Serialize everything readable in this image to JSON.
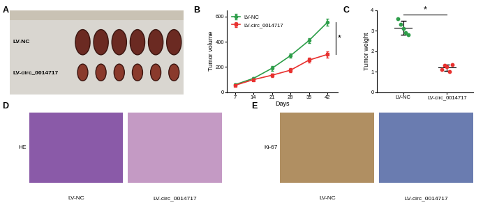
{
  "panel_labels": [
    "A",
    "B",
    "C",
    "D",
    "E"
  ],
  "photo": {
    "row_labels": [
      "LV-NC",
      "LV-circ_0014717"
    ]
  },
  "chart_data": [
    {
      "type": "line",
      "x": [
        7,
        14,
        21,
        28,
        35,
        42
      ],
      "xlim": [
        4,
        46
      ],
      "xticks": [
        7,
        14,
        21,
        28,
        35,
        42
      ],
      "ylim": [
        0,
        650
      ],
      "yticks": [
        0,
        200,
        400,
        600
      ],
      "x_label": "Days",
      "y_label": "Tumor volume",
      "legend": "upper left",
      "annotations": [
        "*"
      ],
      "series": [
        {
          "name": "LV-NC",
          "color": "#2e9e4a",
          "marker": "o",
          "values": [
            60,
            110,
            190,
            290,
            410,
            555
          ],
          "errors": [
            10,
            12,
            20,
            18,
            20,
            25
          ]
        },
        {
          "name": "LV-circ_0014717",
          "color": "#e8312f",
          "marker": "s",
          "values": [
            55,
            100,
            135,
            175,
            255,
            300
          ],
          "errors": [
            8,
            10,
            15,
            15,
            20,
            25
          ]
        }
      ]
    },
    {
      "type": "scatter",
      "categories": [
        "LV-NC",
        "LV-circ_0014717"
      ],
      "values": [
        [
          3.6,
          3.3,
          3.1,
          2.9,
          2.8
        ],
        [
          1.1,
          1.3,
          1.25,
          1.0,
          1.35
        ]
      ],
      "means": [
        3.15,
        1.2
      ],
      "errors": [
        0.35,
        0.15
      ],
      "colors": [
        "#2e9e4a",
        "#e8312f"
      ],
      "marker": "o",
      "ylim": [
        0,
        4
      ],
      "yticks": [
        0,
        1,
        2,
        3,
        4
      ],
      "y_label": "Tumor weight",
      "annotations": [
        "*"
      ]
    }
  ],
  "histology": [
    {
      "stain_label": "HE",
      "image_labels": [
        "LV-NC",
        "LV-circ_0014717"
      ]
    },
    {
      "stain_label": "Ki-67",
      "image_labels": [
        "LV-NC",
        "LV-circ_0014717"
      ]
    }
  ]
}
